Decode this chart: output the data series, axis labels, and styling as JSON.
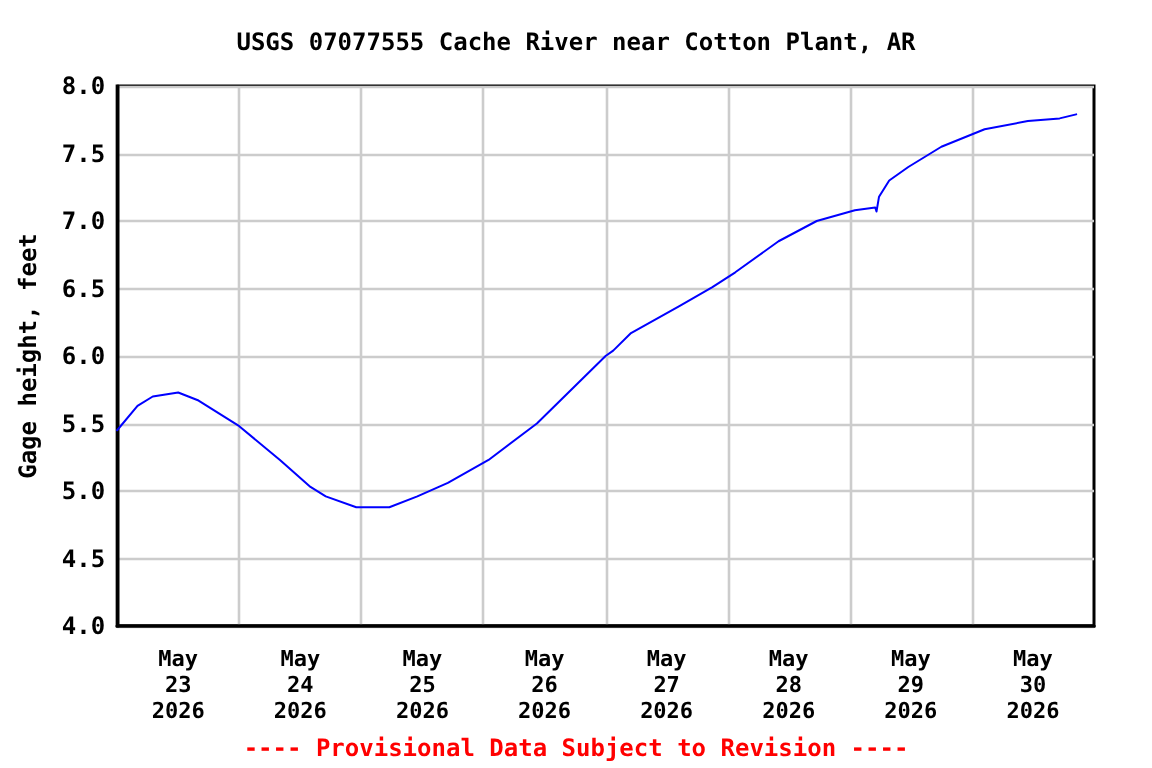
{
  "chart_data": {
    "type": "line",
    "title": "USGS 07077555 Cache River near Cotton Plant, AR",
    "ylabel": "Gage height, feet",
    "annotations": [
      "---- Provisional Data Subject to Revision ----"
    ],
    "x": [
      "2026-05-23T00:00",
      "2026-05-23T04:00",
      "2026-05-23T07:00",
      "2026-05-23T12:00",
      "2026-05-23T16:00",
      "2026-05-24T00:00",
      "2026-05-24T08:00",
      "2026-05-24T14:00",
      "2026-05-24T17:00",
      "2026-05-24T23:00",
      "2026-05-25T05:30",
      "2026-05-25T11:00",
      "2026-05-25T17:00",
      "2026-05-26T01:00",
      "2026-05-26T10:30",
      "2026-05-27T00:00",
      "2026-05-27T01:30",
      "2026-05-27T05:00",
      "2026-05-27T14:30",
      "2026-05-27T21:00",
      "2026-05-28T01:30",
      "2026-05-28T10:00",
      "2026-05-28T17:30",
      "2026-05-29T01:00",
      "2026-05-29T05:00",
      "2026-05-29T05:15",
      "2026-05-29T05:45",
      "2026-05-29T07:45",
      "2026-05-29T11:30",
      "2026-05-29T18:00",
      "2026-05-30T02:30",
      "2026-05-30T11:00",
      "2026-05-30T17:15",
      "2026-05-30T20:30"
    ],
    "series": [
      {
        "color": "#0000ff",
        "values": [
          5.45,
          5.63,
          5.7,
          5.73,
          5.67,
          5.48,
          5.23,
          5.03,
          4.96,
          4.88,
          4.88,
          4.96,
          5.06,
          5.23,
          5.5,
          6.0,
          6.04,
          6.17,
          6.37,
          6.51,
          6.62,
          6.85,
          7.0,
          7.08,
          7.1,
          7.07,
          7.18,
          7.3,
          7.4,
          7.55,
          7.68,
          7.74,
          7.76,
          7.79
        ]
      }
    ],
    "xlim": [
      "2026-05-23T00:00",
      "2026-05-31T00:00"
    ],
    "xticks": [
      {
        "value": "2026-05-23T12:00",
        "label": "May\n23\n2026"
      },
      {
        "value": "2026-05-24T12:00",
        "label": "May\n24\n2026"
      },
      {
        "value": "2026-05-25T12:00",
        "label": "May\n25\n2026"
      },
      {
        "value": "2026-05-26T12:00",
        "label": "May\n26\n2026"
      },
      {
        "value": "2026-05-27T12:00",
        "label": "May\n27\n2026"
      },
      {
        "value": "2026-05-28T12:00",
        "label": "May\n28\n2026"
      },
      {
        "value": "2026-05-29T12:00",
        "label": "May\n29\n2026"
      },
      {
        "value": "2026-05-30T12:00",
        "label": "May\n30\n2026"
      },
      {
        "value": "2026-05-24T00:00",
        "label": null
      },
      {
        "value": "2026-05-25T00:00",
        "label": null
      },
      {
        "value": "2026-05-26T00:00",
        "label": null
      },
      {
        "value": "2026-05-27T00:00",
        "label": null
      },
      {
        "value": "2026-05-28T00:00",
        "label": null
      },
      {
        "value": "2026-05-29T00:00",
        "label": null
      },
      {
        "value": "2026-05-30T00:00",
        "label": null
      }
    ],
    "ylim": [
      4.0,
      8.0
    ],
    "yticks": [
      {
        "value": 4.0,
        "label": "4.0"
      },
      {
        "value": 4.5,
        "label": "4.5"
      },
      {
        "value": 5.0,
        "label": "5.0"
      },
      {
        "value": 5.5,
        "label": "5.5"
      },
      {
        "value": 6.0,
        "label": "6.0"
      },
      {
        "value": 6.5,
        "label": "6.5"
      },
      {
        "value": 7.0,
        "label": "7.0"
      },
      {
        "value": 7.5,
        "label": "7.5"
      },
      {
        "value": 8.0,
        "label": "8.0"
      }
    ],
    "grid": true,
    "marker": "none",
    "line_style": "solid"
  }
}
